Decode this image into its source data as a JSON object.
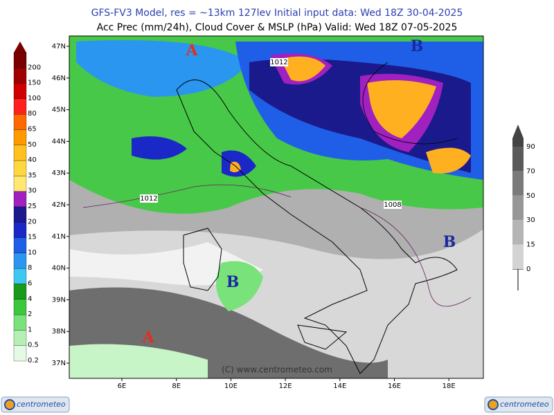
{
  "header": {
    "title": "GFS-FV3 Model, res = ~13km 127lev    Initial input data: Wed 18Z 30-04-2025",
    "subtitle": "Acc Prec (mm/24h), Cloud Cover & MSLP (hPa)  Valid: Wed 18Z 07-05-2025"
  },
  "map": {
    "latitudes": [
      "47N",
      "46N",
      "45N",
      "44N",
      "43N",
      "42N",
      "41N",
      "40N",
      "39N",
      "38N",
      "37N"
    ],
    "longitudes": [
      "6E",
      "8E",
      "10E",
      "12E",
      "14E",
      "16E",
      "18E"
    ],
    "highs": [
      "A",
      "A"
    ],
    "lows": [
      "B",
      "B",
      "B"
    ],
    "isobars": [
      "1012",
      "1012",
      "1008"
    ],
    "copyright": "(C) www.centrometeo.com"
  },
  "precip_legend": {
    "labels": [
      200,
      150,
      100,
      80,
      65,
      50,
      40,
      35,
      30,
      25,
      20,
      15,
      10,
      8,
      6,
      4,
      2,
      1,
      0.5,
      0.2
    ],
    "colors": [
      "#7a0000",
      "#a00000",
      "#d00000",
      "#ff2020",
      "#ff6a00",
      "#ff9a00",
      "#ffc020",
      "#ffd840",
      "#ffe870",
      "#a020c0",
      "#1a1a8c",
      "#1a28c8",
      "#1f5fe8",
      "#2a96f0",
      "#3cc8f0",
      "#1a9a1a",
      "#3cc83c",
      "#7ae27a",
      "#b4f0b4",
      "#e4fae4"
    ]
  },
  "cloud_legend": {
    "labels": [
      90,
      70,
      50,
      30,
      15,
      0
    ],
    "colors": [
      "#5a5a5a",
      "#7a7a7a",
      "#979797",
      "#b5b5b5",
      "#d3d3d3",
      "#f0f0f0"
    ]
  },
  "logos": [
    "centrometeo",
    "centrometeo"
  ]
}
